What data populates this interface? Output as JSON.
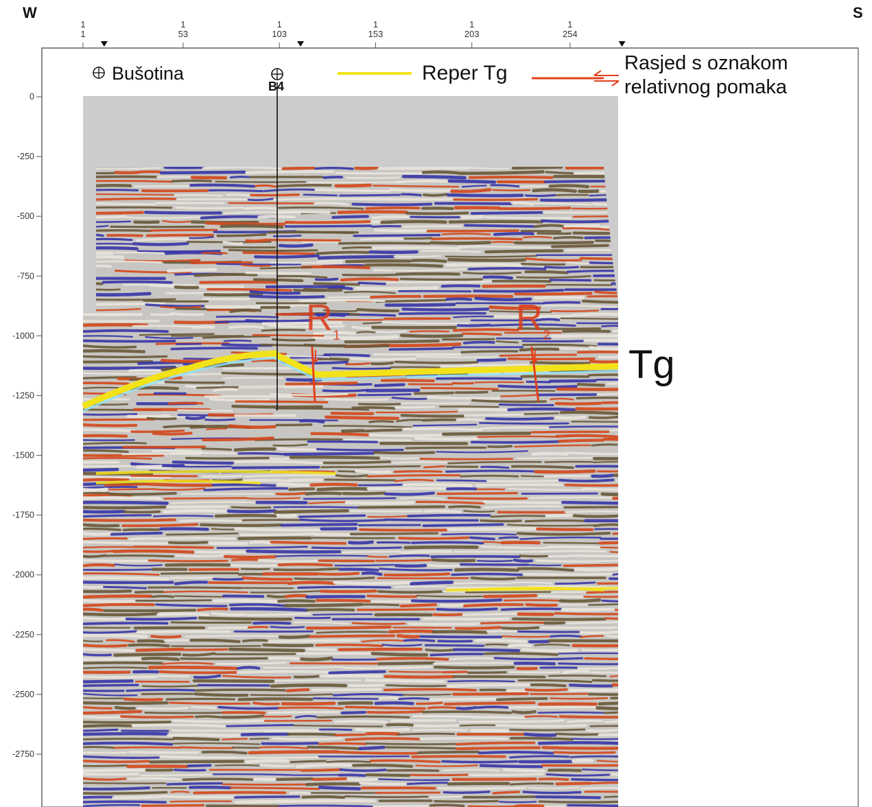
{
  "header": {
    "left_direction": "W",
    "right_direction": "S"
  },
  "top_axis": {
    "tick_labels": [
      {
        "top": "1",
        "bottom": "1",
        "value": 1
      },
      {
        "top": "1",
        "bottom": "53",
        "value": 53
      },
      {
        "top": "1",
        "bottom": "103",
        "value": 103
      },
      {
        "top": "1",
        "bottom": "153",
        "value": 153
      },
      {
        "top": "1",
        "bottom": "203",
        "value": 203
      },
      {
        "top": "1",
        "bottom": "254",
        "value": 254
      }
    ],
    "marker_positions": [
      12,
      114,
      281
    ]
  },
  "left_axis": {
    "tick_values": [
      0,
      -250,
      -500,
      -750,
      -1000,
      -1250,
      -1500,
      -1750,
      -2000,
      -2250,
      -2500,
      -2750
    ],
    "tick_labels": [
      "0",
      "-250",
      "-500",
      "-750",
      "-1000",
      "-1250",
      "-1500",
      "-1750",
      "-2000",
      "-2250",
      "-2500",
      "-2750"
    ]
  },
  "legend": {
    "well_symbol": "⊕",
    "well_label": "Bušotina",
    "reference_label": "Reper Tg",
    "fault_label_line1": "Rasjed s oznakom",
    "fault_label_line2": "relativnog pomaka",
    "reference_color": "#f2e21a",
    "fault_color": "#e2401c"
  },
  "well": {
    "name": "B4",
    "trace": 103
  },
  "horizon": {
    "label": "Tg"
  },
  "faults": [
    {
      "letter": "R",
      "index": "1",
      "trace": 120
    },
    {
      "letter": "R",
      "index": "2",
      "trace": 234
    }
  ],
  "colors": {
    "red_reflector": "#d24a1e",
    "blue_reflector": "#3a37a8",
    "background_gray": "#cccccc",
    "seismic_bg": "#c8c6c2"
  }
}
